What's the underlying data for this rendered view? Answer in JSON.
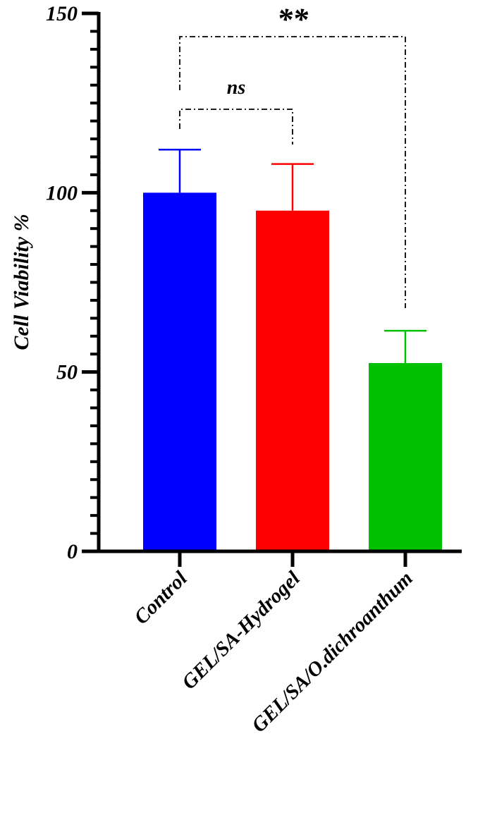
{
  "chart_data": {
    "type": "bar",
    "y_label": "Cell Viability %",
    "categories": [
      "Control",
      "GEL/SA-Hydrogel",
      "GEL/SA/O.dichroanthum"
    ],
    "values": [
      100,
      95,
      52.5
    ],
    "errors": [
      12,
      13,
      9
    ],
    "colors": [
      "#0000ff",
      "#ff0000",
      "#00c000"
    ],
    "ylim": [
      0,
      150
    ],
    "yticks": [
      0,
      50,
      100,
      150
    ],
    "yminorticks": [
      5,
      10,
      15,
      20,
      25,
      30,
      35,
      40,
      45,
      55,
      60,
      65,
      70,
      75,
      80,
      85,
      90,
      95,
      105,
      110,
      115,
      120,
      125,
      130,
      135,
      140,
      145
    ],
    "annotations": [
      "ns",
      "**"
    ]
  }
}
